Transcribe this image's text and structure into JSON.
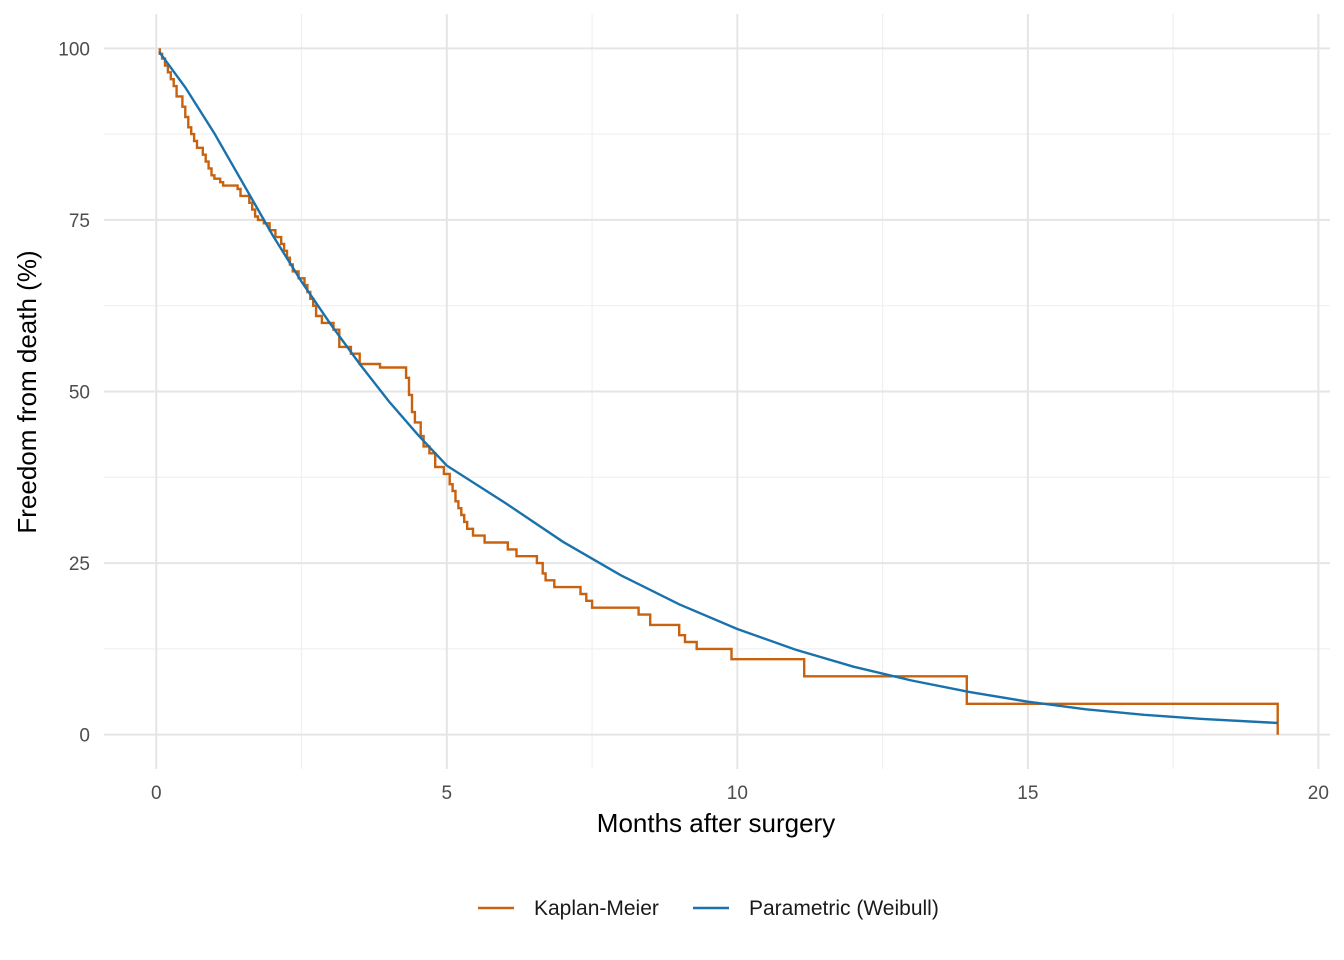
{
  "chart_data": {
    "type": "line",
    "title": "",
    "xlabel": "Months after surgery",
    "ylabel": "Freedom from death (%)",
    "xlim": [
      -0.9,
      20.2
    ],
    "ylim": [
      -5,
      105
    ],
    "xticks": [
      0,
      5,
      10,
      15,
      20
    ],
    "yticks": [
      0,
      25,
      50,
      75,
      100
    ],
    "grid": true,
    "legend_position": "bottom",
    "series": [
      {
        "name": "Kaplan-Meier",
        "color": "#c8620e",
        "kind": "step",
        "x": [
          0.06,
          0.1,
          0.15,
          0.2,
          0.25,
          0.3,
          0.35,
          0.45,
          0.5,
          0.55,
          0.6,
          0.65,
          0.7,
          0.8,
          0.85,
          0.9,
          0.95,
          1.0,
          1.1,
          1.15,
          1.4,
          1.45,
          1.6,
          1.65,
          1.7,
          1.75,
          1.85,
          1.95,
          2.05,
          2.15,
          2.2,
          2.25,
          2.3,
          2.35,
          2.45,
          2.55,
          2.6,
          2.65,
          2.7,
          2.75,
          2.85,
          3.05,
          3.15,
          3.35,
          3.5,
          3.85,
          4.3,
          4.35,
          4.4,
          4.45,
          4.55,
          4.6,
          4.7,
          4.8,
          4.95,
          5.05,
          5.1,
          5.15,
          5.2,
          5.25,
          5.3,
          5.35,
          5.45,
          5.65,
          6.05,
          6.2,
          6.55,
          6.65,
          6.7,
          6.85,
          7.3,
          7.4,
          7.5,
          8.3,
          8.5,
          9.0,
          9.1,
          9.3,
          9.9,
          11.15,
          13.95,
          19.3
        ],
        "y": [
          99.2,
          98.5,
          97.5,
          96.5,
          95.5,
          94.5,
          93.0,
          91.5,
          90.0,
          88.5,
          87.5,
          86.5,
          85.5,
          84.5,
          83.5,
          82.5,
          81.5,
          81.0,
          80.5,
          80.0,
          79.5,
          78.5,
          77.5,
          76.5,
          75.5,
          75.0,
          74.5,
          73.5,
          72.5,
          71.5,
          70.5,
          69.5,
          68.5,
          67.5,
          66.5,
          65.5,
          64.5,
          63.5,
          62.5,
          61.0,
          60.0,
          59.0,
          56.5,
          55.5,
          54.0,
          53.5,
          52.0,
          49.5,
          47.0,
          45.5,
          43.5,
          42.0,
          41.0,
          39.0,
          38.0,
          36.5,
          35.5,
          34.0,
          33.0,
          32.0,
          31.0,
          30.0,
          29.0,
          28.0,
          27.0,
          26.0,
          25.0,
          23.5,
          22.5,
          21.5,
          20.5,
          19.5,
          18.5,
          17.5,
          16.0,
          14.5,
          13.5,
          12.5,
          11.0,
          8.5,
          4.5,
          0.0
        ]
      },
      {
        "name": "Parametric (Weibull)",
        "color": "#1a72ac",
        "kind": "curve",
        "x": [
          0.05,
          0.5,
          1,
          1.5,
          2,
          2.5,
          3,
          3.5,
          4,
          4.5,
          5,
          6,
          7,
          8,
          9,
          10,
          11,
          12,
          13,
          14,
          15,
          16,
          17,
          18,
          19.3
        ],
        "y": [
          99.5,
          94.3,
          87.6,
          80.2,
          72.8,
          66.0,
          59.8,
          54.0,
          48.6,
          43.7,
          39.2,
          33.8,
          28.1,
          23.2,
          19.0,
          15.4,
          12.4,
          9.9,
          7.9,
          6.2,
          4.8,
          3.7,
          2.9,
          2.3,
          1.7
        ]
      }
    ]
  }
}
